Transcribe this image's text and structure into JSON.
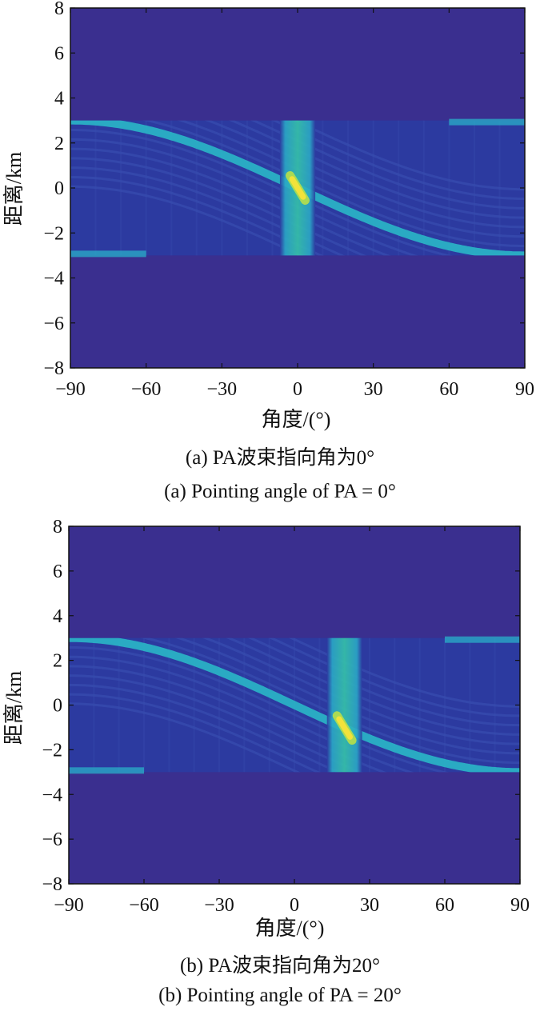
{
  "chart_data": [
    {
      "type": "heatmap",
      "xlabel": "角度/(°)",
      "ylabel": "距离/km",
      "xlim": [
        -90,
        90
      ],
      "ylim": [
        -8,
        8
      ],
      "x_ticks": [
        "-90",
        "-60",
        "-30",
        "0",
        "30",
        "60",
        "90"
      ],
      "y_ticks": [
        "8",
        "6",
        "4",
        "2",
        "0",
        "-2",
        "-4",
        "-6",
        "-8"
      ],
      "band_range": [
        -3,
        3
      ],
      "pointing_angle": 0,
      "caption_cn": "(a) PA波束指向角为0°",
      "caption_en": "(a) Pointing angle of PA = 0°",
      "colors": {
        "background": "#3a2f8f",
        "band": "#2c3aa0",
        "ridge": "#2ab7c7",
        "peak": "#f2e23a"
      }
    },
    {
      "type": "heatmap",
      "xlabel": "角度/(°)",
      "ylabel": "距离/km",
      "xlim": [
        -90,
        90
      ],
      "ylim": [
        -8,
        8
      ],
      "x_ticks": [
        "-90",
        "-60",
        "-30",
        "0",
        "30",
        "60",
        "90"
      ],
      "y_ticks": [
        "8",
        "6",
        "4",
        "2",
        "0",
        "-2",
        "-4",
        "-6",
        "-8"
      ],
      "band_range": [
        -3,
        3
      ],
      "pointing_angle": 20,
      "caption_cn": "(b) PA波束指向角为20°",
      "caption_en": "(b) Pointing angle of PA = 20°",
      "colors": {
        "background": "#3a2f8f",
        "band": "#2c3aa0",
        "ridge": "#2ab7c7",
        "peak": "#f2e23a"
      }
    }
  ]
}
